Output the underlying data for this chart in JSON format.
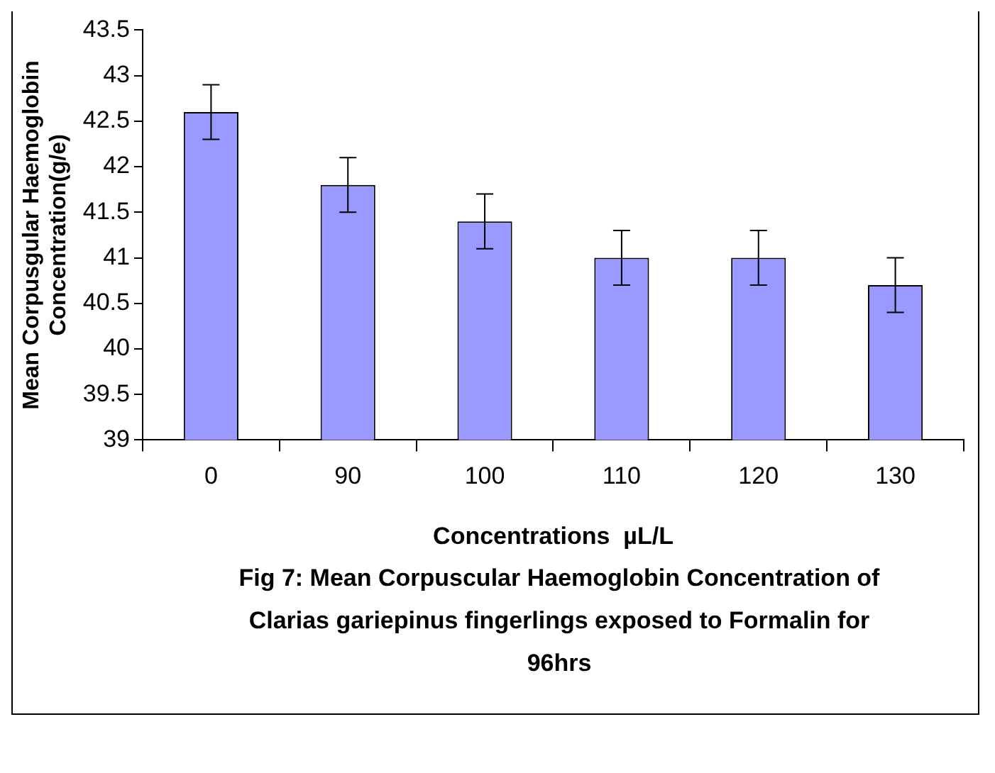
{
  "chart_data": {
    "type": "bar",
    "ylabel": "Mean Corpusgular Haemoglobin Concentration(g/e)",
    "xlabel": "Concentrations  µL/L",
    "annotations": [
      "Fig 7:  Mean Corpuscular Haemoglobin Concentration of Clarias gariepinus fingerlings exposed to Formalin for 96hrs"
    ],
    "categories": [
      "0",
      "90",
      "100",
      "110",
      "120",
      "130"
    ],
    "values": [
      42.6,
      41.8,
      41.4,
      41,
      41,
      40.7
    ],
    "errors": [
      0.3,
      0.3,
      0.3,
      0.3,
      0.3,
      0.3
    ],
    "color": "#9999ff",
    "ylim": [
      39,
      43.5
    ],
    "yticks": [
      39,
      39.5,
      40,
      40.5,
      41,
      41.5,
      42,
      42.5,
      43,
      43.5
    ],
    "grid": false,
    "legend": false
  }
}
